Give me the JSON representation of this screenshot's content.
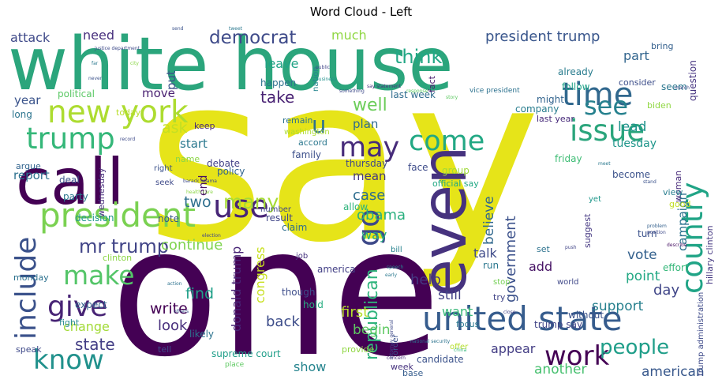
{
  "chart_data": {
    "type": "wordcloud",
    "title": "Word Cloud - Left",
    "words": [
      {
        "text": "say",
        "color": "#e6e419"
      },
      {
        "text": "one",
        "color": "#440154"
      },
      {
        "text": "white house",
        "color": "#2ba57c"
      },
      {
        "text": "call",
        "color": "#440154"
      },
      {
        "text": "even",
        "color": "#46327e"
      },
      {
        "text": "united state",
        "color": "#365c8d"
      },
      {
        "text": "president",
        "color": "#7ad151"
      },
      {
        "text": "new york",
        "color": "#addc30"
      },
      {
        "text": "time",
        "color": "#31688e"
      },
      {
        "text": "issue",
        "color": "#2ba57c"
      },
      {
        "text": "trump",
        "color": "#35b779"
      },
      {
        "text": "country",
        "color": "#20a486"
      },
      {
        "text": "include",
        "color": "#3b528b"
      },
      {
        "text": "give",
        "color": "#482475"
      },
      {
        "text": "know",
        "color": "#21918c"
      },
      {
        "text": "make",
        "color": "#54c568"
      },
      {
        "text": "go",
        "color": "#3e4989"
      },
      {
        "text": "use",
        "color": "#482677"
      },
      {
        "text": "may",
        "color": "#472c7a"
      },
      {
        "text": "come",
        "color": "#22a884"
      },
      {
        "text": "see",
        "color": "#26818e"
      },
      {
        "text": "work",
        "color": "#440154"
      },
      {
        "text": "republican",
        "color": "#2fb47c"
      },
      {
        "text": "people",
        "color": "#1f9e89"
      },
      {
        "text": "mr trump",
        "color": "#414487"
      },
      {
        "text": "many",
        "color": "#a5db36"
      },
      {
        "text": "democrat",
        "color": "#3e4a89"
      },
      {
        "text": "think",
        "color": "#22a785"
      },
      {
        "text": "president trump",
        "color": "#39568c"
      },
      {
        "text": "u",
        "color": "#2d708e"
      },
      {
        "text": "state",
        "color": "#433e85"
      },
      {
        "text": "continue",
        "color": "#7fd34e"
      },
      {
        "text": "write",
        "color": "#440154"
      },
      {
        "text": "well",
        "color": "#6ccd5a"
      },
      {
        "text": "take",
        "color": "#482173"
      },
      {
        "text": "ask",
        "color": "#c2df23"
      },
      {
        "text": "two",
        "color": "#2e6f8e"
      },
      {
        "text": "find",
        "color": "#1f9f88"
      },
      {
        "text": "look",
        "color": "#472e7c"
      },
      {
        "text": "government",
        "color": "#3b518b"
      },
      {
        "text": "believe",
        "color": "#31688e"
      },
      {
        "text": "obama",
        "color": "#2ab07f"
      },
      {
        "text": "case",
        "color": "#2e6d8e"
      },
      {
        "text": "help",
        "color": "#453882"
      },
      {
        "text": "still",
        "color": "#424186"
      },
      {
        "text": "first",
        "color": "#b5de2b"
      },
      {
        "text": "back",
        "color": "#3d4d8a"
      },
      {
        "text": "begin",
        "color": "#5ec962"
      },
      {
        "text": "donald trump",
        "color": "#482576"
      },
      {
        "text": "congress",
        "color": "#c8e020"
      },
      {
        "text": "american",
        "color": "#38588c"
      },
      {
        "text": "another",
        "color": "#46c06f"
      },
      {
        "text": "support",
        "color": "#27808e"
      },
      {
        "text": "day",
        "color": "#404688"
      },
      {
        "text": "point",
        "color": "#22a884"
      },
      {
        "text": "vote",
        "color": "#34618d"
      },
      {
        "text": "campaign",
        "color": "#2c738e"
      },
      {
        "text": "lead",
        "color": "#20938c"
      },
      {
        "text": "tuesday",
        "color": "#1f968b"
      },
      {
        "text": "add",
        "color": "#471365"
      },
      {
        "text": "talk",
        "color": "#3e4a89"
      },
      {
        "text": "want",
        "color": "#37b878"
      },
      {
        "text": "appear",
        "color": "#433d84"
      },
      {
        "text": "show",
        "color": "#25848e"
      },
      {
        "text": "change",
        "color": "#a2da37"
      },
      {
        "text": "report",
        "color": "#2d718e"
      },
      {
        "text": "attack",
        "color": "#3e4989"
      },
      {
        "text": "need",
        "color": "#472f7d"
      },
      {
        "text": "much",
        "color": "#90d743"
      },
      {
        "text": "part",
        "color": "#32658e"
      },
      {
        "text": "leave",
        "color": "#20a386"
      },
      {
        "text": "put",
        "color": "#3b528b"
      },
      {
        "text": "move",
        "color": "#481f70"
      },
      {
        "text": "start",
        "color": "#2a788e"
      },
      {
        "text": "year",
        "color": "#3a538b"
      },
      {
        "text": "plan",
        "color": "#2f6b8e"
      },
      {
        "text": "mean",
        "color": "#453781"
      },
      {
        "text": "end",
        "color": "#471063"
      },
      {
        "text": "way",
        "color": "#26ad81"
      },
      {
        "text": "last week",
        "color": "#2f6c8e"
      },
      {
        "text": "political",
        "color": "#5ac864"
      },
      {
        "text": "today",
        "color": "#b8de29"
      },
      {
        "text": "long",
        "color": "#2b748e"
      },
      {
        "text": "keep",
        "color": "#482878"
      },
      {
        "text": "remain",
        "color": "#2c728e"
      },
      {
        "text": "washington",
        "color": "#addc30"
      },
      {
        "text": "accord",
        "color": "#2a778e"
      },
      {
        "text": "family",
        "color": "#3c4f8a"
      },
      {
        "text": "thursday",
        "color": "#3f4889"
      },
      {
        "text": "group",
        "color": "#a0da39"
      },
      {
        "text": "face",
        "color": "#3e4c8a"
      },
      {
        "text": "friday",
        "color": "#3dbc74"
      },
      {
        "text": "company",
        "color": "#287d8e"
      },
      {
        "text": "might",
        "color": "#32648e"
      },
      {
        "text": "last year",
        "color": "#472a7a"
      },
      {
        "text": "already",
        "color": "#287c8e"
      },
      {
        "text": "follow",
        "color": "#1fa287"
      },
      {
        "text": "fact",
        "color": "#481a6c"
      },
      {
        "text": "happen",
        "color": "#2d708e"
      },
      {
        "text": "nation",
        "color": "#25858e"
      },
      {
        "text": "question",
        "color": "#463480"
      },
      {
        "text": "seem",
        "color": "#2a768e"
      },
      {
        "text": "biden",
        "color": "#90d743"
      },
      {
        "text": "bring",
        "color": "#34608d"
      },
      {
        "text": "consider",
        "color": "#3d4e8a"
      },
      {
        "text": "official say",
        "color": "#22a884"
      },
      {
        "text": "vice president",
        "color": "#2c718e"
      },
      {
        "text": "debate",
        "color": "#424086"
      },
      {
        "text": "policy",
        "color": "#32658e"
      },
      {
        "text": "name",
        "color": "#8bd646"
      },
      {
        "text": "deal",
        "color": "#3b528b"
      },
      {
        "text": "wednesday",
        "color": "#472d7b"
      },
      {
        "text": "party",
        "color": "#2a788e"
      },
      {
        "text": "decision",
        "color": "#1f988b"
      },
      {
        "text": "note",
        "color": "#38598c"
      },
      {
        "text": "result",
        "color": "#404588"
      },
      {
        "text": "claim",
        "color": "#2e6e8e"
      },
      {
        "text": "allow",
        "color": "#2fb47c"
      },
      {
        "text": "number",
        "color": "#3f4788"
      },
      {
        "text": "job",
        "color": "#46337f"
      },
      {
        "text": "america",
        "color": "#423f85"
      },
      {
        "text": "though",
        "color": "#3d4d8a"
      },
      {
        "text": "hold",
        "color": "#27ad81"
      },
      {
        "text": "expect",
        "color": "#34608d"
      },
      {
        "text": "likely",
        "color": "#2c738e"
      },
      {
        "text": "fight",
        "color": "#23898e"
      },
      {
        "text": "speak",
        "color": "#3e4989"
      },
      {
        "text": "tell",
        "color": "#3e4a89"
      },
      {
        "text": "supreme court",
        "color": "#1f9e89"
      },
      {
        "text": "provide",
        "color": "#90d743"
      },
      {
        "text": "week",
        "color": "#46327e"
      },
      {
        "text": "base",
        "color": "#365d8d"
      },
      {
        "text": "candidate",
        "color": "#3b528b"
      },
      {
        "text": "offer",
        "color": "#b5de2b"
      },
      {
        "text": "focus",
        "color": "#2a778e"
      },
      {
        "text": "trump say",
        "color": "#414487"
      },
      {
        "text": "without",
        "color": "#3b528b"
      },
      {
        "text": "run",
        "color": "#2a778e"
      },
      {
        "text": "try",
        "color": "#414487"
      },
      {
        "text": "stop",
        "color": "#75d054"
      },
      {
        "text": "set",
        "color": "#2c728e"
      },
      {
        "text": "bill",
        "color": "#26828e"
      },
      {
        "text": "suggest",
        "color": "#453882"
      },
      {
        "text": "yet",
        "color": "#1f988b"
      },
      {
        "text": "world",
        "color": "#3f4889"
      },
      {
        "text": "effort",
        "color": "#35b779"
      },
      {
        "text": "turn",
        "color": "#3b528b"
      },
      {
        "text": "woman",
        "color": "#472a7a"
      },
      {
        "text": "good",
        "color": "#c2df23"
      },
      {
        "text": "view",
        "color": "#287d8e"
      },
      {
        "text": "become",
        "color": "#3b528b"
      },
      {
        "text": "trump administration",
        "color": "#3e4a89"
      },
      {
        "text": "hillary clinton",
        "color": "#453882"
      },
      {
        "text": "clinton",
        "color": "#8bd646"
      },
      {
        "text": "monday",
        "color": "#2c718e"
      },
      {
        "text": "right",
        "color": "#3b528b"
      },
      {
        "text": "seek",
        "color": "#3e4a89"
      },
      {
        "text": "argue",
        "color": "#32648e"
      },
      {
        "text": "place",
        "color": "#5ec962"
      },
      {
        "text": "problem",
        "color": "#34618d"
      },
      {
        "text": "position",
        "color": "#3e4989"
      },
      {
        "text": "describe",
        "color": "#471365"
      },
      {
        "text": "stand",
        "color": "#3b528b"
      },
      {
        "text": "meet",
        "color": "#2a788e"
      },
      {
        "text": "close",
        "color": "#414487"
      },
      {
        "text": "concern",
        "color": "#472a7a"
      },
      {
        "text": "china",
        "color": "#35b779"
      },
      {
        "text": "national security",
        "color": "#2c738e"
      },
      {
        "text": "attorney general",
        "color": "#3e4a89"
      },
      {
        "text": "order",
        "color": "#3b528b"
      },
      {
        "text": "early",
        "color": "#2a788e"
      },
      {
        "text": "speech",
        "color": "#26828e"
      },
      {
        "text": "barack obama",
        "color": "#3e4a89"
      },
      {
        "text": "health care",
        "color": "#8bd646"
      },
      {
        "text": "election",
        "color": "#404688"
      },
      {
        "text": "action",
        "color": "#2c718e"
      },
      {
        "text": "others",
        "color": "#3b528b"
      },
      {
        "text": "march",
        "color": "#3e4a89"
      },
      {
        "text": "response",
        "color": "#5ec962"
      },
      {
        "text": "say statement",
        "color": "#46327e"
      },
      {
        "text": "something",
        "color": "#3e4a89"
      },
      {
        "text": "public",
        "color": "#414487"
      },
      {
        "text": "business",
        "color": "#21918c"
      },
      {
        "text": "never",
        "color": "#3b528b"
      },
      {
        "text": "far",
        "color": "#2a788e"
      },
      {
        "text": "justice department",
        "color": "#3e4a89"
      },
      {
        "text": "send",
        "color": "#3b528b"
      },
      {
        "text": "tweet",
        "color": "#2a788e"
      },
      {
        "text": "city",
        "color": "#8bd646"
      },
      {
        "text": "record",
        "color": "#3e4a89"
      },
      {
        "text": "push",
        "color": "#414487"
      },
      {
        "text": "story",
        "color": "#5ec962"
      }
    ]
  }
}
